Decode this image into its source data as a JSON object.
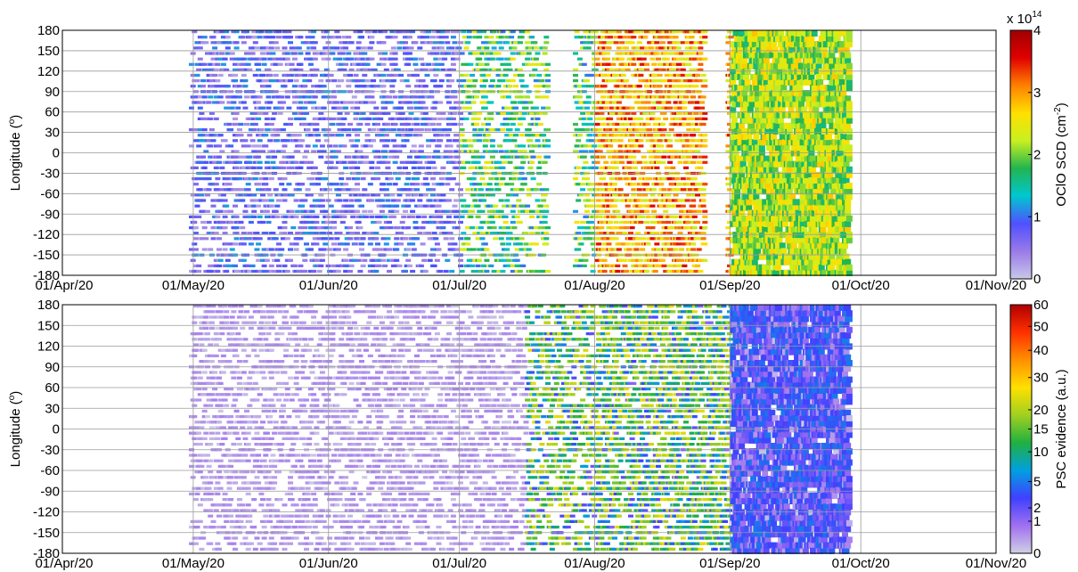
{
  "chart_data": [
    {
      "type": "heatmap",
      "panel": "top",
      "xlim": [
        "2020-04-01",
        "2020-11-01"
      ],
      "x_ticks": [
        "01/Apr/20",
        "01/May/20",
        "01/Jun/20",
        "01/Jul/20",
        "01/Aug/20",
        "01/Sep/20",
        "01/Oct/20",
        "01/Nov/20"
      ],
      "ylabel_main": "Longitude (",
      "ylabel_sup": "o",
      "ylabel_end": ")",
      "ylim": [
        -180,
        180
      ],
      "y_ticks": [
        "180",
        "150",
        "120",
        "90",
        "60",
        "30",
        "0",
        "-30",
        "-60",
        "-90",
        "-120",
        "-150",
        "-180"
      ],
      "grid": true,
      "colorbar": {
        "label_main": "OClO SCD (cm",
        "label_sup": "-2",
        "label_end": ")",
        "scale_base": "x 10",
        "scale_exp": "14",
        "range": [
          0,
          4
        ],
        "ticks": [
          "0",
          "1",
          "2",
          "3",
          "4"
        ],
        "tick_values": [
          0,
          1,
          2,
          3,
          4
        ]
      },
      "data_description": [
        {
          "period": [
            "2020-04-30",
            "2020-06-30"
          ],
          "value_range": [
            0.2,
            1.2
          ]
        },
        {
          "period": [
            "2020-07-01",
            "2020-07-31"
          ],
          "value_range": [
            1.0,
            2.6
          ]
        },
        {
          "period": [
            "2020-08-01",
            "2020-08-31"
          ],
          "value_range": [
            2.2,
            3.6
          ]
        },
        {
          "period": [
            "2020-09-01",
            "2020-09-28"
          ],
          "value_range": [
            1.6,
            2.8
          ]
        }
      ],
      "gaps": [
        [
          "2020-07-21",
          "2020-07-27"
        ],
        [
          "2020-08-26",
          "2020-08-31"
        ]
      ]
    },
    {
      "type": "heatmap",
      "panel": "bottom",
      "xlim": [
        "2020-04-01",
        "2020-11-01"
      ],
      "x_ticks": [
        "01/Apr/20",
        "01/May/20",
        "01/Jun/20",
        "01/Jul/20",
        "01/Aug/20",
        "01/Sep/20",
        "01/Oct/20",
        "01/Nov/20"
      ],
      "ylabel_main": "Longitude (",
      "ylabel_sup": "o",
      "ylabel_end": ")",
      "ylim": [
        -180,
        180
      ],
      "y_ticks": [
        "180",
        "150",
        "120",
        "90",
        "60",
        "30",
        "0",
        "-30",
        "-60",
        "-90",
        "-120",
        "-150",
        "-180"
      ],
      "grid": true,
      "colorbar": {
        "label": "PSC evidence (a.u.)",
        "range": [
          0,
          60
        ],
        "scale": "nonlinear",
        "ticks": [
          "0",
          "1",
          "2",
          "5",
          "10",
          "15",
          "20",
          "30",
          "40",
          "50",
          "60"
        ],
        "tick_values": [
          0,
          1,
          2,
          5,
          10,
          15,
          20,
          30,
          40,
          50,
          60
        ]
      },
      "data_description": [
        {
          "period": [
            "2020-04-30",
            "2020-07-15"
          ],
          "value_range": [
            0,
            0.5
          ]
        },
        {
          "period": [
            "2020-07-16",
            "2020-08-31"
          ],
          "value_range": [
            1,
            25
          ]
        },
        {
          "period": [
            "2020-09-01",
            "2020-09-28"
          ],
          "value_range": [
            0,
            5
          ]
        }
      ]
    }
  ],
  "colors": {
    "grid": "#9a9a9a",
    "axis": "#000000",
    "cmap_top": [
      "#c8c8e8",
      "#9a7ae8",
      "#5050ff",
      "#00c8d0",
      "#22b450",
      "#c8f020",
      "#ffe000",
      "#ff8000",
      "#e00000",
      "#a00000"
    ],
    "cmap_bottom": [
      "#d0d0e4",
      "#a070f0",
      "#4040ff",
      "#00a0e0",
      "#20b040",
      "#a0d020",
      "#ffe000",
      "#ff9000",
      "#ff3000",
      "#b00000"
    ]
  }
}
